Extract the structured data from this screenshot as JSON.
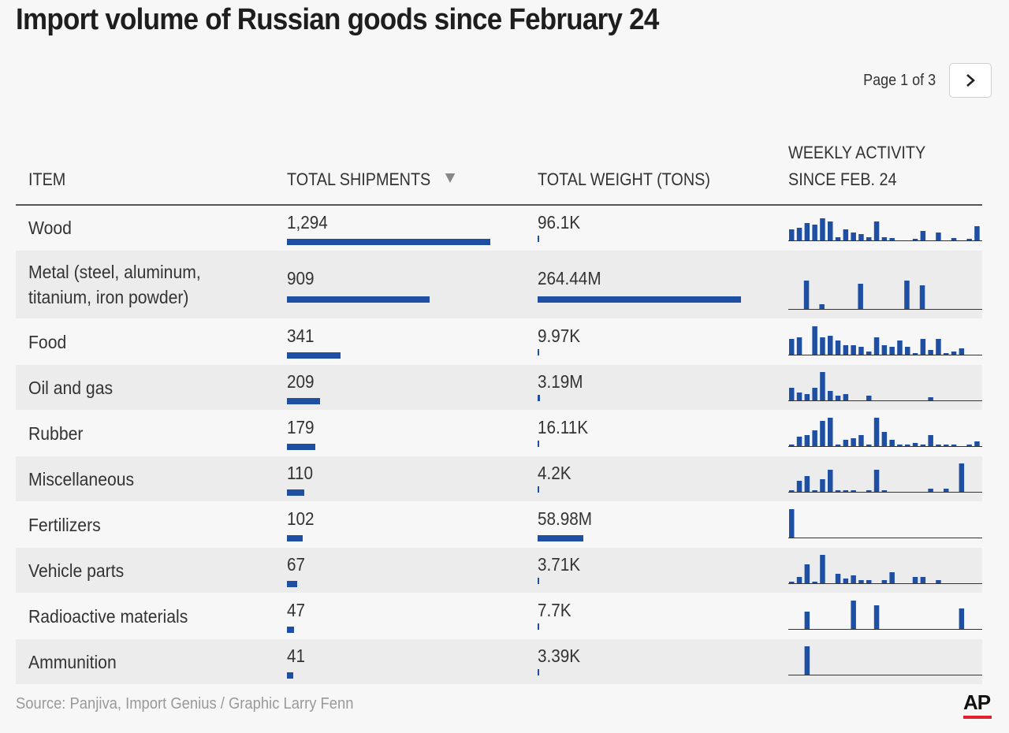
{
  "title": "Import volume of Russian goods since February 24",
  "pager": {
    "text": "Page 1 of 3"
  },
  "headers": {
    "item": "ITEM",
    "shipments": "TOTAL SHIPMENTS",
    "weight": "TOTAL WEIGHT (TONS)",
    "weekly": "WEEKLY ACTIVITY SINCE FEB. 24"
  },
  "source": "Source: Panjiva, Import Genius / Graphic Larry Fenn",
  "logo": "AP",
  "colors": {
    "bar": "#1f4fa3",
    "logo_red": "#e0202a"
  },
  "chart_data": {
    "type": "table",
    "columns": [
      "ITEM",
      "TOTAL SHIPMENTS",
      "TOTAL WEIGHT (TONS)",
      "WEEKLY ACTIVITY SINCE FEB. 24"
    ],
    "shipments_max": 1294,
    "weight_max_tons": 264440000,
    "rows": [
      {
        "item": "Wood",
        "shipments": 1294,
        "shipments_label": "1,294",
        "weight_tons": 96100,
        "weight_label": "96.1K",
        "weekly": [
          14,
          16,
          22,
          20,
          28,
          24,
          4,
          14,
          10,
          8,
          4,
          24,
          4,
          3,
          0,
          0,
          2,
          12,
          0,
          10,
          0,
          3,
          0,
          2,
          18,
          10
        ]
      },
      {
        "item": "Metal (steel, aluminum, titanium, iron powder)",
        "shipments": 909,
        "shipments_label": "909",
        "weight_tons": 264440000,
        "weight_label": "264.44M",
        "weekly": [
          0,
          30,
          0,
          5,
          0,
          0,
          0,
          0,
          0,
          0,
          0,
          0,
          0,
          0,
          0,
          0,
          0,
          0,
          0,
          0,
          0,
          0,
          0,
          0,
          0,
          0,
          0,
          0,
          0,
          0,
          0,
          0,
          0,
          0,
          0,
          0,
          0,
          0,
          0,
          0,
          0,
          0,
          0,
          0,
          0,
          0,
          0,
          0,
          0,
          0,
          0,
          0,
          0,
          0,
          0,
          0,
          0,
          0,
          0,
          0
        ],
        "weekly_bars": [
          [
            1,
            36
          ],
          [
            3,
            6
          ],
          [
            8,
            32
          ],
          [
            14,
            36
          ],
          [
            16,
            30
          ]
        ]
      },
      {
        "item": "Food",
        "shipments": 341,
        "shipments_label": "341",
        "weight_tons": 9970,
        "weight_label": "9.97K",
        "weekly": [
          20,
          22,
          0,
          36,
          22,
          24,
          18,
          12,
          12,
          10,
          4,
          22,
          12,
          10,
          18,
          10,
          2,
          20,
          6,
          20,
          2,
          4,
          8
        ]
      },
      {
        "item": "Oil and gas",
        "shipments": 209,
        "shipments_label": "209",
        "weight_tons": 3190000,
        "weight_label": "3.19M",
        "weekly": [
          16,
          10,
          8,
          16,
          36,
          12,
          6,
          8,
          0,
          0,
          6,
          0,
          0,
          0,
          0,
          0,
          0,
          0,
          4,
          0,
          0,
          0,
          0,
          0
        ]
      },
      {
        "item": "Rubber",
        "shipments": 179,
        "shipments_label": "179",
        "weight_tons": 16110,
        "weight_label": "16.11K",
        "weekly": [
          2,
          12,
          14,
          20,
          32,
          36,
          2,
          8,
          10,
          14,
          2,
          36,
          18,
          8,
          2,
          2,
          4,
          2,
          14,
          2,
          2,
          2,
          0,
          2,
          6,
          2
        ]
      },
      {
        "item": "Miscellaneous",
        "shipments": 110,
        "shipments_label": "110",
        "weight_tons": 4200,
        "weight_label": "4.2K",
        "weekly": [
          2,
          14,
          20,
          2,
          16,
          28,
          2,
          2,
          2,
          0,
          2,
          28,
          2,
          0,
          0,
          0,
          0,
          0,
          4,
          0,
          4,
          0,
          36,
          0,
          0,
          0
        ]
      },
      {
        "item": "Fertilizers",
        "shipments": 102,
        "shipments_label": "102",
        "weight_tons": 58980000,
        "weight_label": "58.98M",
        "weekly": [
          36
        ]
      },
      {
        "item": "Vehicle parts",
        "shipments": 67,
        "shipments_label": "67",
        "weight_tons": 3710,
        "weight_label": "3.71K",
        "weekly": [
          2,
          8,
          24,
          2,
          36,
          0,
          12,
          6,
          10,
          4,
          4,
          0,
          4,
          14,
          0,
          0,
          8,
          8,
          0,
          4,
          0,
          0,
          0,
          0
        ]
      },
      {
        "item": "Radioactive materials",
        "shipments": 47,
        "shipments_label": "47",
        "weight_tons": 7700,
        "weight_label": "7.7K",
        "weekly": [
          0,
          0,
          22,
          0,
          0,
          0,
          0,
          0,
          36,
          0,
          0,
          30,
          0,
          0,
          0,
          0,
          0,
          0,
          0,
          0,
          0,
          0,
          26
        ]
      },
      {
        "item": "Ammunition",
        "shipments": 41,
        "shipments_label": "41",
        "weight_tons": 3390,
        "weight_label": "3.39K",
        "weekly": [
          0,
          0,
          36
        ]
      }
    ]
  }
}
